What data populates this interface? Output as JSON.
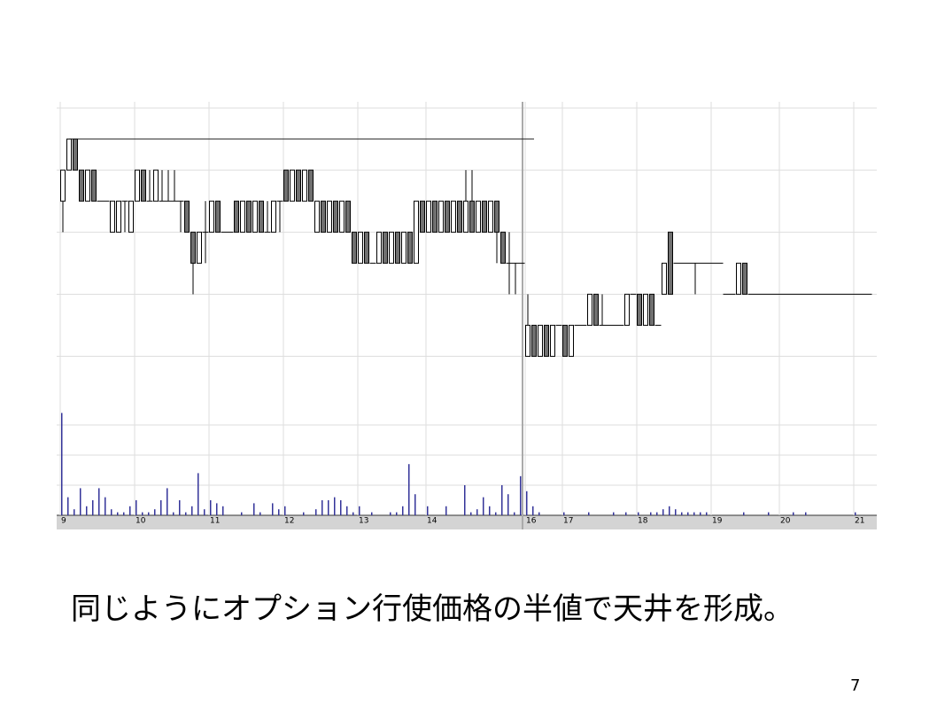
{
  "chart_data": {
    "type": "candlestick",
    "categories": [
      "9",
      null,
      null,
      null,
      null,
      null,
      null,
      null,
      null,
      null,
      null,
      null,
      "10",
      null,
      null,
      null,
      null,
      null,
      null,
      null,
      null,
      null,
      null,
      null,
      "11",
      null,
      null,
      null,
      null,
      null,
      null,
      null,
      null,
      null,
      null,
      null,
      "12",
      null,
      null,
      null,
      null,
      null,
      null,
      null,
      null,
      null,
      null,
      null,
      "13",
      null,
      null,
      null,
      null,
      null,
      null,
      null,
      null,
      null,
      null,
      "14",
      null,
      null,
      null,
      null,
      null,
      null,
      null,
      null,
      null,
      null,
      null,
      null,
      null,
      null,
      null,
      "16",
      null,
      null,
      null,
      null,
      null,
      "17",
      null,
      null,
      null,
      null,
      null,
      null,
      null,
      null,
      null,
      null,
      null,
      "18",
      null,
      null,
      null,
      null,
      null,
      null,
      null,
      null,
      null,
      null,
      null,
      "19",
      null,
      null,
      null,
      null,
      null,
      null,
      null,
      null,
      null,
      null,
      "20",
      null,
      null,
      null,
      null,
      null,
      null,
      null,
      null,
      null,
      null,
      null,
      "21",
      null,
      null
    ],
    "ohlc": [
      [
        5,
        6,
        4,
        6
      ],
      [
        6,
        7,
        6,
        7
      ],
      [
        7,
        7,
        6,
        6
      ],
      [
        6,
        6,
        5,
        5
      ],
      [
        5,
        6,
        5,
        6
      ],
      [
        6,
        6,
        5,
        5
      ],
      [
        5,
        5,
        5,
        5
      ],
      [
        5,
        5,
        5,
        5
      ],
      [
        4,
        5,
        4,
        5
      ],
      [
        4,
        5,
        4,
        5
      ],
      [
        5,
        5,
        4,
        5
      ],
      [
        4,
        5,
        4,
        5
      ],
      [
        5,
        6,
        5,
        6
      ],
      [
        6,
        6,
        5,
        5
      ],
      [
        5,
        6,
        5,
        5
      ],
      [
        5,
        6,
        5,
        6
      ],
      [
        5,
        6,
        5,
        5
      ],
      [
        5,
        6,
        5,
        5
      ],
      [
        5,
        6,
        5,
        5
      ],
      [
        5,
        5,
        4,
        5
      ],
      [
        5,
        5,
        4,
        4
      ],
      [
        4,
        4,
        2,
        3
      ],
      [
        3,
        4,
        3,
        4
      ],
      [
        4,
        5,
        3,
        4
      ],
      [
        4,
        5,
        4,
        5
      ],
      [
        5,
        5,
        4,
        4
      ],
      [
        4,
        4,
        4,
        4
      ],
      [
        4,
        4,
        4,
        4
      ],
      [
        5,
        5,
        4,
        4
      ],
      [
        4,
        5,
        4,
        5
      ],
      [
        5,
        5,
        4,
        4
      ],
      [
        4,
        5,
        4,
        5
      ],
      [
        5,
        5,
        4,
        4
      ],
      [
        4,
        5,
        4,
        4
      ],
      [
        4,
        5,
        4,
        5
      ],
      [
        5,
        5,
        4,
        5
      ],
      [
        6,
        6,
        5,
        5
      ],
      [
        5,
        6,
        5,
        6
      ],
      [
        6,
        6,
        5,
        5
      ],
      [
        5,
        6,
        5,
        6
      ],
      [
        6,
        6,
        5,
        5
      ],
      [
        4,
        5,
        4,
        5
      ],
      [
        5,
        5,
        4,
        4
      ],
      [
        4,
        5,
        4,
        5
      ],
      [
        5,
        5,
        4,
        4
      ],
      [
        4,
        5,
        4,
        5
      ],
      [
        5,
        5,
        4,
        4
      ],
      [
        4,
        4,
        3,
        3
      ],
      [
        3,
        4,
        3,
        4
      ],
      [
        4,
        4,
        3,
        3
      ],
      [
        3,
        3,
        3,
        3
      ],
      [
        3,
        4,
        3,
        4
      ],
      [
        4,
        4,
        3,
        3
      ],
      [
        3,
        4,
        3,
        4
      ],
      [
        4,
        4,
        3,
        3
      ],
      [
        3,
        4,
        3,
        4
      ],
      [
        4,
        4,
        3,
        3
      ],
      [
        3,
        5,
        3,
        5
      ],
      [
        5,
        5,
        4,
        4
      ],
      [
        4,
        5,
        4,
        5
      ],
      [
        5,
        5,
        4,
        4
      ],
      [
        4,
        5,
        4,
        5
      ],
      [
        5,
        5,
        4,
        4
      ],
      [
        4,
        5,
        4,
        5
      ],
      [
        5,
        5,
        4,
        4
      ],
      [
        4,
        6,
        4,
        5
      ],
      [
        5,
        6,
        4,
        4
      ],
      [
        4,
        5,
        4,
        5
      ],
      [
        5,
        5,
        4,
        4
      ],
      [
        4,
        5,
        4,
        5
      ],
      [
        5,
        5,
        3,
        4
      ],
      [
        4,
        4,
        3,
        3
      ],
      [
        3,
        4,
        2,
        3
      ],
      [
        3,
        3,
        2,
        3
      ],
      [
        3,
        3,
        3,
        3
      ],
      [
        0,
        2,
        0,
        1
      ],
      [
        1,
        1,
        0,
        0
      ],
      [
        0,
        1,
        0,
        1
      ],
      [
        1,
        1,
        0,
        0
      ],
      [
        0,
        1,
        0,
        1
      ],
      [
        1,
        1,
        1,
        1
      ],
      [
        1,
        1,
        0,
        0
      ],
      [
        0,
        1,
        0,
        1
      ],
      [
        1,
        1,
        1,
        1
      ],
      [
        1,
        1,
        1,
        1
      ],
      [
        1,
        2,
        1,
        2
      ],
      [
        2,
        2,
        1,
        1
      ],
      [
        1,
        2,
        1,
        1
      ],
      [
        1,
        1,
        1,
        1
      ],
      [
        1,
        1,
        1,
        1
      ],
      [
        1,
        1,
        1,
        1
      ],
      [
        1,
        2,
        1,
        2
      ],
      [
        2,
        2,
        2,
        2
      ],
      [
        2,
        2,
        1,
        1
      ],
      [
        1,
        2,
        1,
        2
      ],
      [
        2,
        2,
        1,
        1
      ],
      [
        1,
        1,
        1,
        1
      ],
      [
        2,
        3,
        2,
        3
      ],
      [
        4,
        4,
        2,
        2
      ],
      [
        3,
        3,
        3,
        3
      ],
      [
        3,
        3,
        3,
        3
      ],
      [
        3,
        3,
        3,
        3
      ],
      [
        3,
        3,
        2,
        3
      ],
      [
        3,
        3,
        3,
        3
      ],
      [
        3,
        3,
        3,
        3
      ],
      [
        3,
        3,
        3,
        3
      ],
      [
        3,
        3,
        3,
        3
      ],
      [
        2,
        2,
        2,
        2
      ],
      [
        2,
        2,
        2,
        2
      ],
      [
        2,
        3,
        2,
        3
      ],
      [
        3,
        3,
        2,
        2
      ],
      [
        2,
        2,
        2,
        2
      ],
      [
        2,
        2,
        2,
        2
      ],
      [
        2,
        2,
        2,
        2
      ],
      [
        2,
        2,
        2,
        2
      ],
      [
        2,
        2,
        2,
        2
      ],
      [
        2,
        2,
        2,
        2
      ],
      [
        2,
        2,
        2,
        2
      ],
      [
        2,
        2,
        2,
        2
      ],
      [
        2,
        2,
        2,
        2
      ],
      [
        2,
        2,
        2,
        2
      ],
      [
        2,
        2,
        2,
        2
      ],
      [
        2,
        2,
        2,
        2
      ],
      [
        2,
        2,
        2,
        2
      ],
      [
        2,
        2,
        2,
        2
      ],
      [
        2,
        2,
        2,
        2
      ],
      [
        2,
        2,
        2,
        2
      ],
      [
        2,
        2,
        2,
        2
      ],
      [
        2,
        2,
        2,
        2
      ],
      [
        2,
        2,
        2,
        2
      ],
      [
        2,
        2,
        2,
        2
      ]
    ],
    "volume": [
      3.4,
      0.6,
      0.2,
      0.9,
      0.3,
      0.5,
      0.9,
      0.6,
      0.2,
      0.1,
      0.1,
      0.3,
      0.5,
      0.1,
      0.1,
      0.2,
      0.5,
      0.9,
      0.1,
      0.5,
      0.1,
      0.3,
      1.4,
      0.2,
      0.5,
      0.4,
      0.3,
      0,
      0,
      0.1,
      0,
      0.4,
      0.1,
      0,
      0.4,
      0.2,
      0.3,
      0,
      0,
      0.1,
      0,
      0.2,
      0.5,
      0.5,
      0.6,
      0.5,
      0.3,
      0.1,
      0.3,
      0,
      0.1,
      0,
      0,
      0.1,
      0.1,
      0.3,
      1.7,
      0.7,
      0,
      0.3,
      0,
      0,
      0.3,
      0,
      0,
      1,
      0.1,
      0.2,
      0.6,
      0.3,
      0.1,
      1.0,
      0.7,
      0.1,
      1.3,
      0.8,
      0.3,
      0.1,
      0,
      0,
      0,
      0.1,
      0,
      0,
      0,
      0.1,
      0,
      0,
      0,
      0.1,
      0,
      0.1,
      0,
      0.1,
      0,
      0.1,
      0.1,
      0.2,
      0.3,
      0.2,
      0.1,
      0.1,
      0.1,
      0.1,
      0.1,
      0,
      0,
      0,
      0,
      0,
      0.1,
      0,
      0,
      0,
      0.1,
      0,
      0,
      0,
      0.1,
      0,
      0.1,
      0,
      0,
      0,
      0,
      0,
      0,
      0,
      0.1,
      0,
      0
    ],
    "ylim": [
      -1.5,
      8.2
    ],
    "yticks": [
      0,
      2,
      4,
      6,
      8
    ],
    "volume_ylim": [
      0,
      3.5
    ],
    "volume_yticks": [
      1,
      2,
      3
    ],
    "hline": 7,
    "grid": true,
    "up_color": "#ffffff",
    "down_color": "#707070",
    "volume_color": "#333399"
  },
  "caption": "同じようにオプション行使価格の半値で天井を形成。",
  "page_number": "7"
}
